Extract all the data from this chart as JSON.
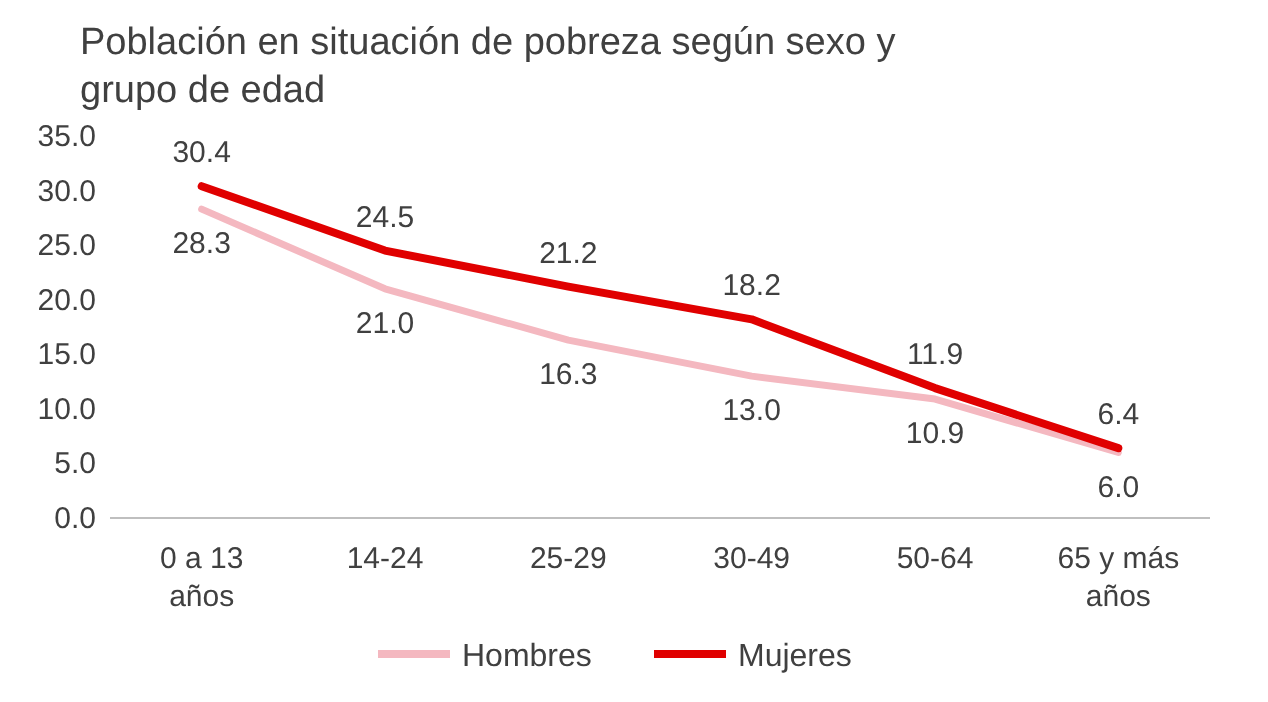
{
  "chart_data": {
    "type": "line",
    "title": "Población en situación de pobreza según sexo y grupo de edad",
    "categories": [
      "0 a 13 años",
      "14-24",
      "25-29",
      "30-49",
      "50-64",
      "65 y más años"
    ],
    "series": [
      {
        "name": "Hombres",
        "color": "#f4b8c0",
        "values": [
          28.3,
          21.0,
          16.3,
          13.0,
          10.9,
          6.0
        ],
        "value_labels": [
          "28.3",
          "21.0",
          "16.3",
          "13.0",
          "10.9",
          "6.0"
        ]
      },
      {
        "name": "Mujeres",
        "color": "#e00000",
        "values": [
          30.4,
          24.5,
          21.2,
          18.2,
          11.9,
          6.4
        ],
        "value_labels": [
          "30.4",
          "24.5",
          "21.2",
          "18.2",
          "11.9",
          "6.4"
        ]
      }
    ],
    "ylim": [
      0,
      35
    ],
    "yticks": [
      {
        "value": 0,
        "label": "0.0"
      },
      {
        "value": 5,
        "label": "5.0"
      },
      {
        "value": 10,
        "label": "10.0"
      },
      {
        "value": 15,
        "label": "15.0"
      },
      {
        "value": 20,
        "label": "20.0"
      },
      {
        "value": 25,
        "label": "25.0"
      },
      {
        "value": 30,
        "label": "30.0"
      },
      {
        "value": 35,
        "label": "35.0"
      }
    ],
    "legend": "bottom",
    "grid": false,
    "marker": "none",
    "line_style": "solid"
  }
}
